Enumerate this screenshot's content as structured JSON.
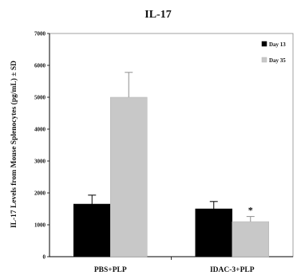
{
  "chart_data": {
    "type": "bar",
    "title": "IL-17",
    "xlabel": "",
    "ylabel": "IL-17 Levels from Mouse Splenocytes (pg/mL) ± SD",
    "ylim": [
      0,
      7000
    ],
    "yticks": [
      0,
      1000,
      2000,
      3000,
      4000,
      5000,
      6000,
      7000
    ],
    "categories": [
      "PBS+PLP",
      "IDAC-3+PLP"
    ],
    "series": [
      {
        "name": "Day 13",
        "color": "#000000",
        "values": [
          1650,
          1500
        ],
        "errors": [
          280,
          230
        ]
      },
      {
        "name": "Day 35",
        "color": "#c8c8c8",
        "values": [
          5000,
          1100
        ],
        "errors": [
          780,
          160
        ]
      }
    ],
    "grid": false,
    "legend_position": "top-right",
    "annotations": [
      {
        "text": "*",
        "category": "IDAC-3+PLP",
        "series": "Day 35"
      }
    ]
  }
}
